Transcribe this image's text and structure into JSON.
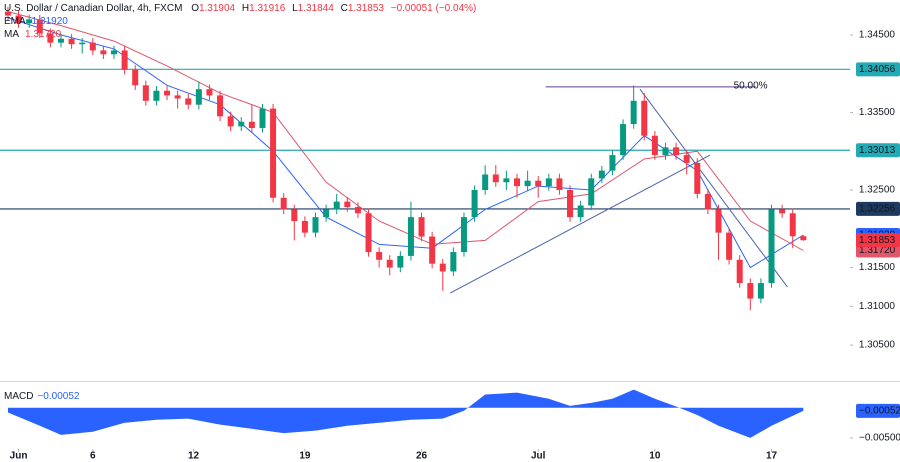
{
  "chart_data": {
    "type": "candlestick",
    "title": "U.S. Dollar / Canadian Dollar, 4h, FXCM",
    "ohlc_header": [
      {
        "label": "O",
        "value": "1.31904"
      },
      {
        "label": "H",
        "value": "1.31916"
      },
      {
        "label": "L",
        "value": "1.31844"
      },
      {
        "label": "C",
        "value": "1.31853"
      }
    ],
    "change": "−0.00051 (−0.04%)",
    "up_color": "#089981",
    "down_color": "#f23645",
    "open": [
      1.348,
      1.3475,
      1.3465,
      1.347,
      1.3452,
      1.344,
      1.3445,
      1.3438,
      1.344,
      1.343,
      1.3425,
      1.343,
      1.3405,
      1.3385,
      1.3365,
      1.3378,
      1.3372,
      1.3368,
      1.336,
      1.338,
      1.3372,
      1.3345,
      1.3332,
      1.3338,
      1.333,
      1.3355,
      1.324,
      1.3225,
      1.321,
      1.3195,
      1.3215,
      1.3225,
      1.3235,
      1.3228,
      1.322,
      1.317,
      1.316,
      1.315,
      1.3165,
      1.3215,
      1.319,
      1.3155,
      1.3145,
      1.317,
      1.3215,
      1.325,
      1.327,
      1.326,
      1.3265,
      1.3255,
      1.3262,
      1.3255,
      1.3265,
      1.325,
      1.3215,
      1.323,
      1.3265,
      1.3275,
      1.3295,
      1.3335,
      1.3365,
      1.332,
      1.3295,
      1.3305,
      1.3295,
      1.3285,
      1.3245,
      1.3225,
      1.3195,
      1.316,
      1.313,
      1.311,
      1.313,
      1.3225,
      1.322,
      1.31904
    ],
    "high": [
      1.3486,
      1.3481,
      1.3476,
      1.3476,
      1.3458,
      1.3451,
      1.3451,
      1.3446,
      1.3446,
      1.3436,
      1.3436,
      1.3436,
      1.3411,
      1.3391,
      1.3384,
      1.3384,
      1.3378,
      1.3374,
      1.339,
      1.3386,
      1.3378,
      1.3351,
      1.3344,
      1.336,
      1.3361,
      1.3361,
      1.3246,
      1.3231,
      1.3216,
      1.3221,
      1.3231,
      1.3245,
      1.3241,
      1.3234,
      1.3226,
      1.3176,
      1.3166,
      1.3171,
      1.3235,
      1.3221,
      1.3196,
      1.3161,
      1.3176,
      1.3221,
      1.3256,
      1.3282,
      1.3282,
      1.3275,
      1.3271,
      1.3275,
      1.3268,
      1.3271,
      1.3271,
      1.3256,
      1.3236,
      1.3271,
      1.3281,
      1.3301,
      1.3341,
      1.3385,
      1.3375,
      1.3326,
      1.3311,
      1.3311,
      1.3301,
      1.3291,
      1.3251,
      1.3231,
      1.3201,
      1.3166,
      1.3136,
      1.3136,
      1.3231,
      1.3231,
      1.3226,
      1.31916
    ],
    "low": [
      1.3469,
      1.3459,
      1.3459,
      1.3446,
      1.3434,
      1.3434,
      1.3432,
      1.3426,
      1.3424,
      1.3419,
      1.3419,
      1.3399,
      1.3379,
      1.3359,
      1.3359,
      1.3366,
      1.3355,
      1.3354,
      1.3354,
      1.3366,
      1.3339,
      1.3326,
      1.3326,
      1.3324,
      1.3324,
      1.3234,
      1.3219,
      1.3185,
      1.3189,
      1.3189,
      1.3209,
      1.3219,
      1.3222,
      1.3214,
      1.3164,
      1.315,
      1.314,
      1.3144,
      1.3159,
      1.3184,
      1.3149,
      1.312,
      1.3139,
      1.3164,
      1.3209,
      1.3244,
      1.3254,
      1.325,
      1.324,
      1.3249,
      1.324,
      1.3249,
      1.3244,
      1.3209,
      1.3209,
      1.3224,
      1.3259,
      1.3269,
      1.3289,
      1.3329,
      1.3314,
      1.3289,
      1.3289,
      1.3289,
      1.327,
      1.3239,
      1.3219,
      1.316,
      1.3154,
      1.3124,
      1.3095,
      1.3104,
      1.3124,
      1.3214,
      1.3175,
      1.31844
    ],
    "close": [
      1.3475,
      1.3465,
      1.347,
      1.3452,
      1.344,
      1.3445,
      1.3438,
      1.344,
      1.343,
      1.3425,
      1.343,
      1.3405,
      1.3385,
      1.3365,
      1.3378,
      1.3372,
      1.3368,
      1.336,
      1.338,
      1.3372,
      1.3345,
      1.3332,
      1.3338,
      1.333,
      1.3355,
      1.324,
      1.3225,
      1.321,
      1.3195,
      1.3215,
      1.3225,
      1.3235,
      1.3228,
      1.322,
      1.317,
      1.316,
      1.315,
      1.3165,
      1.3215,
      1.319,
      1.3155,
      1.3145,
      1.317,
      1.3215,
      1.325,
      1.327,
      1.326,
      1.3265,
      1.3255,
      1.3262,
      1.3255,
      1.3265,
      1.325,
      1.3215,
      1.323,
      1.3265,
      1.3275,
      1.3295,
      1.3335,
      1.3365,
      1.332,
      1.3295,
      1.3305,
      1.3295,
      1.3285,
      1.3245,
      1.3225,
      1.3195,
      1.316,
      1.313,
      1.311,
      1.313,
      1.3225,
      1.322,
      1.31904,
      1.31853
    ],
    "xlim": [
      -0.75,
      79.4
    ],
    "xticks": [
      {
        "value": 1,
        "label": "Jun"
      },
      {
        "value": 8,
        "label": "6"
      },
      {
        "value": 17.5,
        "label": "12"
      },
      {
        "value": 28,
        "label": "19"
      },
      {
        "value": 39,
        "label": "26"
      },
      {
        "value": 50,
        "label": "Jul"
      },
      {
        "value": 61,
        "label": "10"
      },
      {
        "value": 72,
        "label": "17"
      }
    ],
    "ylim": [
      1.3005,
      1.3495
    ],
    "yticks": [
      {
        "value": 1.345,
        "label": "1.34500"
      },
      {
        "value": 1.335,
        "label": "1.33500"
      },
      {
        "value": 1.325,
        "label": "1.32500"
      },
      {
        "value": 1.315,
        "label": "1.31500"
      },
      {
        "value": 1.31,
        "label": "1.31000"
      },
      {
        "value": 1.305,
        "label": "1.30500"
      }
    ],
    "overlays": [
      {
        "name": "EMA",
        "color": "#2962ff",
        "value_label": "1.31920",
        "x": [
          0,
          5,
          10,
          15,
          20,
          25,
          30,
          35,
          40,
          45,
          50,
          55,
          60,
          65,
          70,
          75
        ],
        "values": [
          1.3472,
          1.345,
          1.3432,
          1.3385,
          1.336,
          1.33,
          1.3215,
          1.318,
          1.3175,
          1.3225,
          1.3255,
          1.325,
          1.332,
          1.3275,
          1.315,
          1.3192
        ]
      },
      {
        "name": "MA",
        "color": "#e0566a",
        "value_label": "1.31720",
        "x": [
          0,
          5,
          10,
          15,
          20,
          25,
          30,
          35,
          40,
          45,
          50,
          55,
          60,
          65,
          70,
          75
        ],
        "values": [
          1.348,
          1.3462,
          1.3442,
          1.341,
          1.3375,
          1.335,
          1.326,
          1.321,
          1.318,
          1.3185,
          1.3235,
          1.3245,
          1.329,
          1.33,
          1.321,
          1.3172
        ]
      }
    ],
    "levels": [
      1.34056,
      1.33013,
      1.32256
    ],
    "level_colors": [
      "#22aab5",
      "#22aab5",
      "#1e3a5f"
    ],
    "trendlines": [
      {
        "x": [
          41.7,
          66.2
        ],
        "values": [
          1.3117,
          1.3295
        ],
        "color": "#4a63a8"
      },
      {
        "x": [
          59.6,
          73.5
        ],
        "values": [
          1.338,
          1.3125
        ],
        "color": "#4a63a8"
      }
    ],
    "fib": {
      "x": [
        50.7,
        70.5
      ],
      "value": 1.3383,
      "label": "50.00%",
      "color": "#5d3f8c"
    },
    "macd": {
      "name": "MACD",
      "value_label": "−0.00052",
      "color": "#2962ff",
      "x": [
        0,
        3,
        5,
        8,
        11,
        14,
        17,
        20,
        23,
        26,
        29,
        32,
        35,
        38,
        41,
        43,
        45,
        48,
        51,
        53,
        55,
        57,
        59,
        61,
        63,
        65,
        67,
        70,
        72,
        75
      ],
      "values": [
        -0.0008,
        -0.003,
        -0.0045,
        -0.004,
        -0.0025,
        -0.002,
        -0.0018,
        -0.0028,
        -0.0035,
        -0.0042,
        -0.0038,
        -0.003,
        -0.0025,
        -0.002,
        -0.0018,
        -0.0005,
        0.0022,
        0.0025,
        0.0015,
        0.0003,
        0.0008,
        0.0015,
        0.003,
        0.0015,
        0.0002,
        -0.0012,
        -0.003,
        -0.005,
        -0.003,
        -0.00052
      ],
      "ylim": [
        -0.009,
        0.0041
      ],
      "yticks": [
        {
          "value": -0.00052,
          "label": "−0.00052"
        },
        {
          "value": -0.005,
          "label": "−0.00500"
        }
      ]
    }
  }
}
